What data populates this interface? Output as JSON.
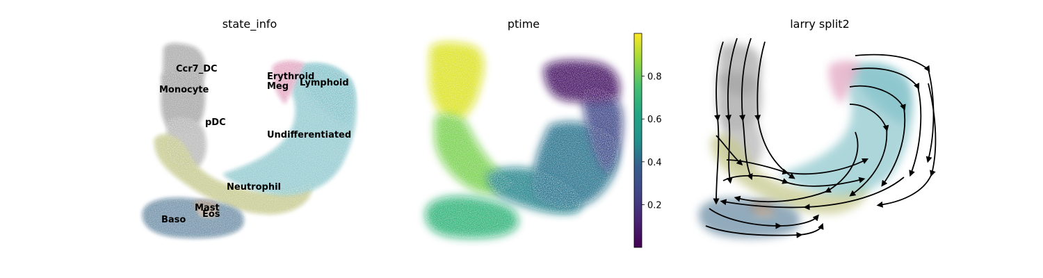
{
  "colors": {
    "Ccr7_DC": "#a9a9a9",
    "Monocyte": "#a5a5a5",
    "pDC": "#b7b7b7",
    "Erythroid": "#e3a7c2",
    "Meg": "#d8a0bd",
    "Lymphoid": "#86c3cb",
    "Undifferentiated": "#92c9cf",
    "Neutrophil": "#c6c98e",
    "Mast": "#a08e80",
    "Eos": "#c6b2a0",
    "Baso": "#6e8fa6",
    "streamline": "#000000"
  },
  "chart_data": [
    {
      "type": "scatter",
      "title": "state_info",
      "embedding": "umap",
      "color_by": "state_info",
      "legend": "on data",
      "clusters": [
        {
          "label": "Ccr7_DC",
          "color": "#a9a9a9"
        },
        {
          "label": "Monocyte",
          "color": "#a5a5a5"
        },
        {
          "label": "pDC",
          "color": "#b7b7b7"
        },
        {
          "label": "Erythroid",
          "color": "#e3a7c2"
        },
        {
          "label": "Meg",
          "color": "#d8a0bd"
        },
        {
          "label": "Lymphoid",
          "color": "#86c3cb"
        },
        {
          "label": "Undifferentiated",
          "color": "#92c9cf"
        },
        {
          "label": "Neutrophil",
          "color": "#c6c98e"
        },
        {
          "label": "Mast",
          "color": "#a08e80"
        },
        {
          "label": "Eos",
          "color": "#c6b2a0"
        },
        {
          "label": "Baso",
          "color": "#6e8fa6"
        }
      ]
    },
    {
      "type": "scatter",
      "title": "ptime",
      "embedding": "umap",
      "color_by": "ptime",
      "colormap": "viridis",
      "colorbar": {
        "ticks": [
          "0.2",
          "0.4",
          "0.6",
          "0.8"
        ],
        "tick_values": [
          0.2,
          0.4,
          0.6,
          0.8
        ],
        "range": [
          0.0,
          1.0
        ]
      },
      "regions": [
        {
          "region": "top-right arm",
          "ptime": 0.05
        },
        {
          "region": "right side",
          "ptime": 0.25
        },
        {
          "region": "center / bottom-right",
          "ptime": 0.4
        },
        {
          "region": "bottom-left lobe",
          "ptime": 0.65
        },
        {
          "region": "left arm middle",
          "ptime": 0.8
        },
        {
          "region": "top-left arm",
          "ptime": 0.95
        }
      ]
    },
    {
      "type": "scatter",
      "title": "larry split2",
      "embedding": "umap",
      "overlay": "velocity streamlines",
      "color_by": "state_info"
    }
  ]
}
